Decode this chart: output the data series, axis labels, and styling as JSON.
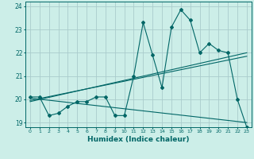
{
  "xlabel": "Humidex (Indice chaleur)",
  "bg_color": "#cceee8",
  "grid_color": "#aacccc",
  "line_color": "#006666",
  "xlim": [
    -0.5,
    23.5
  ],
  "ylim": [
    18.8,
    24.2
  ],
  "yticks": [
    19,
    20,
    21,
    22,
    23,
    24
  ],
  "xticks": [
    0,
    1,
    2,
    3,
    4,
    5,
    6,
    7,
    8,
    9,
    10,
    11,
    12,
    13,
    14,
    15,
    16,
    17,
    18,
    19,
    20,
    21,
    22,
    23
  ],
  "series1_x": [
    0,
    1,
    2,
    3,
    4,
    5,
    6,
    7,
    8,
    9,
    10,
    11,
    12,
    13,
    14,
    15,
    16,
    17,
    18,
    19,
    20,
    21,
    22,
    23
  ],
  "series1_y": [
    20.1,
    20.1,
    19.3,
    19.4,
    19.7,
    19.9,
    19.9,
    20.1,
    20.1,
    19.3,
    19.3,
    21.0,
    23.3,
    21.9,
    20.5,
    23.1,
    23.85,
    23.4,
    22.0,
    22.4,
    22.1,
    22.0,
    20.0,
    18.8
  ],
  "series2_x": [
    0,
    23
  ],
  "series2_y": [
    20.05,
    19.0
  ],
  "series3_x": [
    0,
    23
  ],
  "series3_y": [
    19.9,
    22.0
  ],
  "series4_x": [
    0,
    23
  ],
  "series4_y": [
    19.95,
    21.85
  ]
}
